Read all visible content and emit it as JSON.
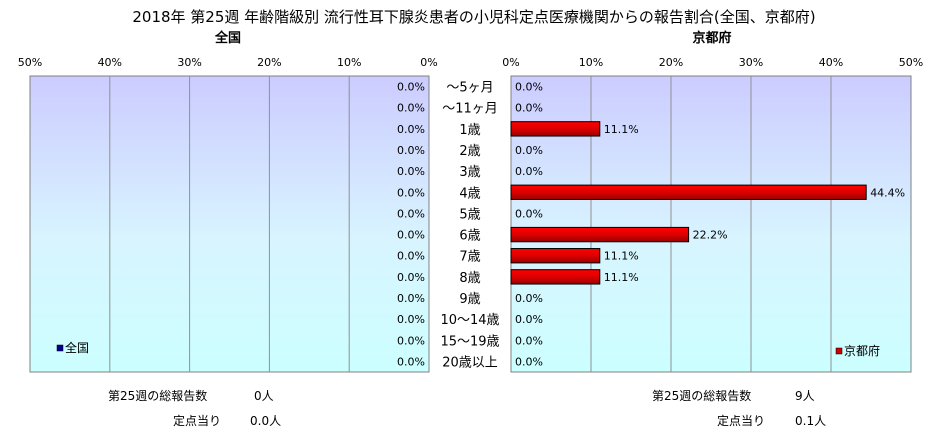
{
  "title": "2018年 第25週 年齢階級別 流行性耳下腺炎患者の小児科定点医療機関からの報告割合(全国、京都府)",
  "colors": {
    "left_bar": "#000099",
    "right_bar": "#CC0000"
  },
  "chart_data": [
    {
      "type": "bar",
      "orientation": "horizontal",
      "direction": "right-to-left",
      "title": "全国",
      "categories": [
        "～5ヶ月",
        "～11ヶ月",
        "1歳",
        "2歳",
        "3歳",
        "4歳",
        "5歳",
        "6歳",
        "7歳",
        "8歳",
        "9歳",
        "10～14歳",
        "15～19歳",
        "20歳以上"
      ],
      "series": [
        {
          "name": "全国",
          "values": [
            0.0,
            0.0,
            0.0,
            0.0,
            0.0,
            0.0,
            0.0,
            0.0,
            0.0,
            0.0,
            0.0,
            0.0,
            0.0,
            0.0
          ]
        }
      ],
      "data_labels": [
        "0.0%",
        "0.0%",
        "0.0%",
        "0.0%",
        "0.0%",
        "0.0%",
        "0.0%",
        "0.0%",
        "0.0%",
        "0.0%",
        "0.0%",
        "0.0%",
        "0.0%",
        "0.0%"
      ],
      "xlim": [
        0,
        50
      ],
      "x_ticks": [
        "50%",
        "40%",
        "30%",
        "20%",
        "10%",
        "0%"
      ],
      "grid": true,
      "legend": "bottom-left"
    },
    {
      "type": "bar",
      "orientation": "horizontal",
      "direction": "left-to-right",
      "title": "京都府",
      "categories": [
        "～5ヶ月",
        "～11ヶ月",
        "1歳",
        "2歳",
        "3歳",
        "4歳",
        "5歳",
        "6歳",
        "7歳",
        "8歳",
        "9歳",
        "10～14歳",
        "15～19歳",
        "20歳以上"
      ],
      "series": [
        {
          "name": "京都府",
          "values": [
            0.0,
            0.0,
            11.1,
            0.0,
            0.0,
            44.4,
            0.0,
            22.2,
            11.1,
            11.1,
            0.0,
            0.0,
            0.0,
            0.0
          ]
        }
      ],
      "data_labels": [
        "0.0%",
        "0.0%",
        "11.1%",
        "0.0%",
        "0.0%",
        "44.4%",
        "0.0%",
        "22.2%",
        "11.1%",
        "11.1%",
        "0.0%",
        "0.0%",
        "0.0%",
        "0.0%"
      ],
      "xlim": [
        0,
        50
      ],
      "x_ticks": [
        "0%",
        "10%",
        "20%",
        "30%",
        "40%",
        "50%"
      ],
      "grid": true,
      "legend": "bottom-right"
    }
  ],
  "footer": {
    "left": {
      "total_label": "第25週の総報告数",
      "total_value": "0人",
      "per_label": "定点当り",
      "per_value": "0.0人"
    },
    "right": {
      "total_label": "第25週の総報告数",
      "total_value": "9人",
      "per_label": "定点当り",
      "per_value": "0.1人"
    }
  }
}
